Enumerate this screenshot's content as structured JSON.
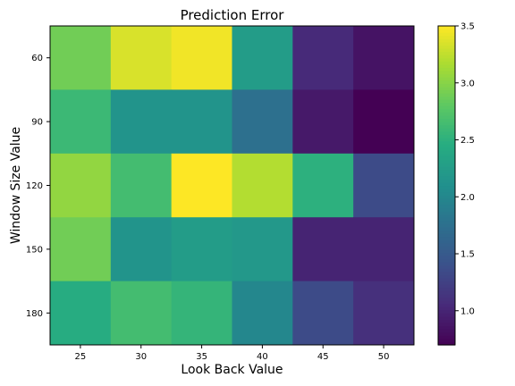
{
  "chart_data": {
    "type": "heatmap",
    "title": "Prediction Error",
    "xlabel": "Look Back Value",
    "ylabel": "Window Size Value",
    "x_categories": [
      "25",
      "30",
      "35",
      "40",
      "45",
      "50"
    ],
    "y_categories": [
      "60",
      "90",
      "120",
      "150",
      "180"
    ],
    "values": [
      [
        2.9,
        3.35,
        3.45,
        2.25,
        1.05,
        0.85
      ],
      [
        2.6,
        2.15,
        2.15,
        1.75,
        0.9,
        0.65
      ],
      [
        3.05,
        2.65,
        3.5,
        3.2,
        2.5,
        1.35
      ],
      [
        2.9,
        2.15,
        2.25,
        2.2,
        1.0,
        1.0
      ],
      [
        2.45,
        2.65,
        2.55,
        2.0,
        1.35,
        1.1
      ]
    ],
    "colorbar": {
      "min": 0.7,
      "max": 3.5,
      "ticks": [
        "1.0",
        "1.5",
        "2.0",
        "2.5",
        "3.0",
        "3.5"
      ],
      "colormap": "viridis"
    },
    "grid": false
  }
}
